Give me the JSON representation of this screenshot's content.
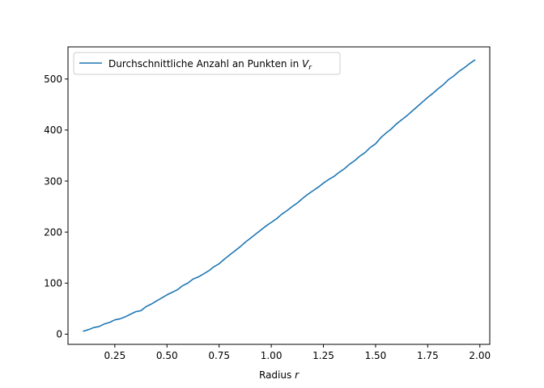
{
  "chart_data": {
    "type": "line",
    "title": "",
    "xlabel": "Radius r",
    "xlabel_parts": {
      "text": "Radius ",
      "var": "r"
    },
    "ylabel": "",
    "xlim": [
      0.0255,
      2.0475
    ],
    "ylim": [
      -20,
      563
    ],
    "xticks": [
      "0.25",
      "0.50",
      "0.75",
      "1.00",
      "1.25",
      "1.50",
      "1.75",
      "2.00"
    ],
    "xtick_values": [
      0.25,
      0.5,
      0.75,
      1.0,
      1.25,
      1.5,
      1.75,
      2.0
    ],
    "yticks": [
      "0",
      "100",
      "200",
      "300",
      "400",
      "500"
    ],
    "ytick_values": [
      0,
      100,
      200,
      300,
      400,
      500
    ],
    "grid": false,
    "legend_position": "upper-left",
    "legend_parts": {
      "text": "Durchschnittliche Anzahl an Punkten in ",
      "var": "V",
      "sub": "r"
    },
    "series": [
      {
        "name": "Durchschnittliche Anzahl an Punkten in V_r",
        "color": "#1f77b4",
        "x": [
          0.1,
          0.125,
          0.15,
          0.175,
          0.2,
          0.225,
          0.25,
          0.275,
          0.3,
          0.325,
          0.35,
          0.375,
          0.4,
          0.425,
          0.45,
          0.475,
          0.5,
          0.525,
          0.55,
          0.575,
          0.6,
          0.625,
          0.65,
          0.675,
          0.7,
          0.725,
          0.75,
          0.775,
          0.8,
          0.825,
          0.85,
          0.875,
          0.9,
          0.925,
          0.95,
          0.975,
          1.0,
          1.025,
          1.05,
          1.075,
          1.1,
          1.125,
          1.15,
          1.175,
          1.2,
          1.225,
          1.25,
          1.275,
          1.3,
          1.325,
          1.35,
          1.375,
          1.4,
          1.425,
          1.45,
          1.475,
          1.5,
          1.525,
          1.55,
          1.575,
          1.6,
          1.625,
          1.65,
          1.675,
          1.7,
          1.725,
          1.75,
          1.775,
          1.8,
          1.825,
          1.85,
          1.875,
          1.9,
          1.925,
          1.95,
          1.975
        ],
        "y": [
          6,
          9,
          13,
          15,
          20,
          23,
          28,
          30,
          34,
          39,
          44,
          46,
          54,
          59,
          65,
          71,
          77,
          82,
          87,
          95,
          100,
          108,
          112,
          118,
          124,
          132,
          138,
          147,
          155,
          163,
          171,
          180,
          188,
          196,
          204,
          212,
          219,
          226,
          235,
          242,
          250,
          257,
          266,
          274,
          281,
          288,
          296,
          303,
          309,
          317,
          324,
          333,
          340,
          349,
          356,
          366,
          373,
          385,
          394,
          402,
          412,
          420,
          428,
          437,
          446,
          455,
          464,
          472,
          481,
          489,
          499,
          506,
          515,
          522,
          530,
          537
        ]
      }
    ]
  }
}
